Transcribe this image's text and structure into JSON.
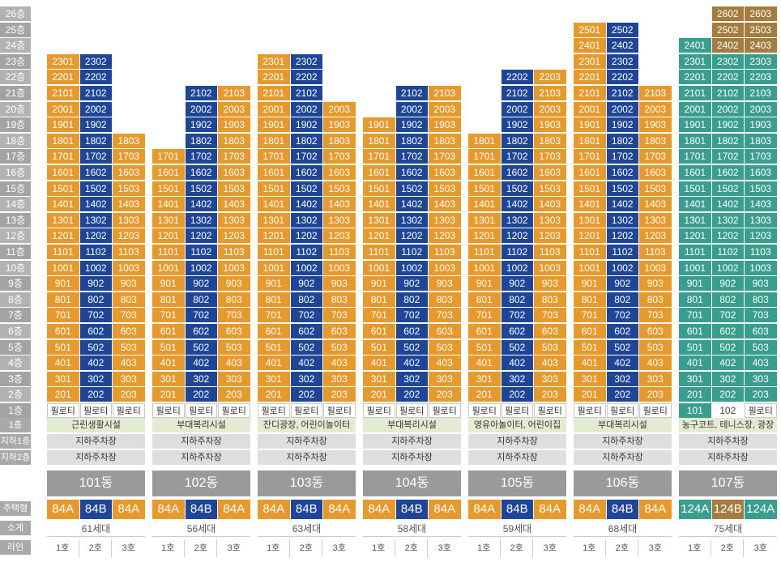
{
  "floor_labels": [
    "26층",
    "25층",
    "24층",
    "23층",
    "22층",
    "21층",
    "20층",
    "19층",
    "18층",
    "17층",
    "16층",
    "15층",
    "14층",
    "13층",
    "12층",
    "11층",
    "10층",
    "9층",
    "8층",
    "7층",
    "6층",
    "5층",
    "4층",
    "3층",
    "2층",
    "1층"
  ],
  "row_labels": {
    "first": "1층",
    "b1": "지하1층",
    "b2": "지하2층",
    "type": "주택형",
    "subtotal": "소계",
    "line": "라인"
  },
  "pilotis": "필로티",
  "buildings": [
    {
      "dong": "101동",
      "top": [
        23,
        23,
        18
      ],
      "fac": "근린생활시설",
      "types": [
        "84A",
        "84B",
        "84A"
      ],
      "count": "61세대",
      "pil": [
        true,
        true,
        true
      ]
    },
    {
      "dong": "102동",
      "top": [
        17,
        21,
        21
      ],
      "fac": "부대복리시설",
      "types": [
        "84A",
        "84B",
        "84A"
      ],
      "count": "56세대",
      "pil": [
        true,
        true,
        true
      ]
    },
    {
      "dong": "103동",
      "top": [
        23,
        23,
        20
      ],
      "fac": "잔디광장, 어린이놀이터",
      "types": [
        "84A",
        "84B",
        "84A"
      ],
      "count": "63세대",
      "pil": [
        true,
        true,
        true
      ]
    },
    {
      "dong": "104동",
      "top": [
        19,
        21,
        21
      ],
      "fac": "부대복리시설",
      "types": [
        "84A",
        "84B",
        "84A"
      ],
      "count": "58세대",
      "pil": [
        true,
        true,
        true
      ]
    },
    {
      "dong": "105동",
      "top": [
        18,
        22,
        22
      ],
      "fac": "영유아놀이터, 어린이집",
      "types": [
        "84A",
        "84B",
        "84A"
      ],
      "count": "59세대",
      "pil": [
        true,
        true,
        true
      ]
    },
    {
      "dong": "106동",
      "top": [
        25,
        25,
        21
      ],
      "fac": "부대복리시설",
      "types": [
        "84A",
        "84B",
        "84A"
      ],
      "count": "68세대",
      "pil": [
        true,
        true,
        true
      ]
    },
    {
      "dong": "107동",
      "top": [
        24,
        26,
        26
      ],
      "fac": "농구코트, 테니스장, 광장",
      "types": [
        "124A",
        "124B",
        "124A"
      ],
      "count": "75세대",
      "pil": [
        false,
        false,
        true
      ]
    }
  ],
  "parking": "지하주차장",
  "lines": [
    "1호",
    "2호",
    "3호"
  ],
  "colors": {
    "a": "#e69a2e",
    "b": "#1f4596",
    "green": "#3a9e8e",
    "gold": "#a57c3f"
  }
}
